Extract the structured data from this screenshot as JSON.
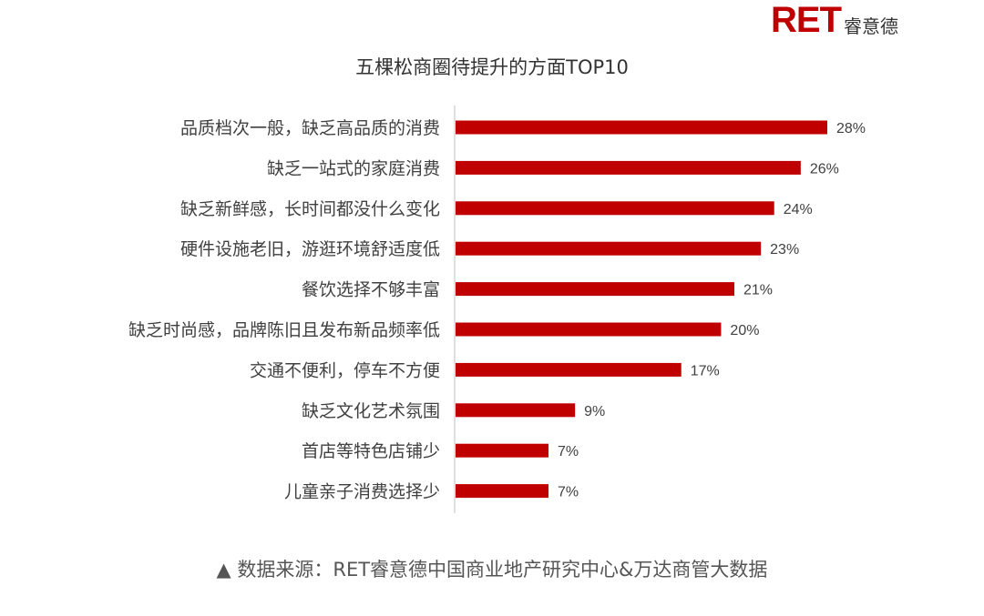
{
  "brand": {
    "mark": "RET",
    "name": "睿意德",
    "color": "#c00000"
  },
  "colors": {
    "bar": "#c00000",
    "axis": "#bfbfbf",
    "label": "#404040"
  },
  "chart_data": {
    "type": "bar",
    "orientation": "horizontal",
    "title": "五棵松商圈待提升的方面TOP10",
    "categories": [
      "品质档次一般，缺乏高品质的消费",
      "缺乏一站式的家庭消费",
      "缺乏新鲜感，长时间都没什么变化",
      "硬件设施老旧，游逛环境舒适度低",
      "餐饮选择不够丰富",
      "缺乏时尚感，品牌陈旧且发布新品频率低",
      "交通不便利，停车不方便",
      "缺乏文化艺术氛围",
      "首店等特色店铺少",
      "儿童亲子消费选择少"
    ],
    "values": [
      28,
      26,
      24,
      23,
      21,
      20,
      17,
      9,
      7,
      7
    ],
    "value_labels": [
      "28%",
      "26%",
      "24%",
      "23%",
      "21%",
      "20%",
      "17%",
      "9%",
      "7%",
      "7%"
    ],
    "xlim": [
      0,
      28
    ],
    "grid": false,
    "legend": "none"
  },
  "source_note": "▲ 数据来源：RET睿意德中国商业地产研究中心&万达商管大数据"
}
